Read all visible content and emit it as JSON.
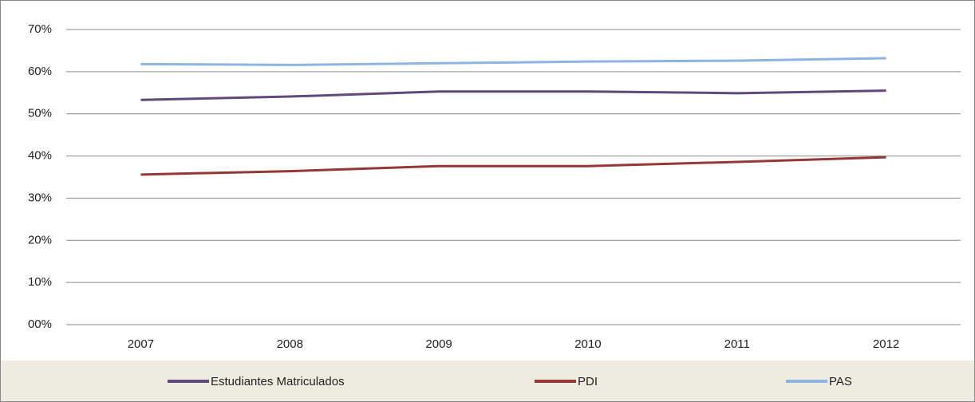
{
  "chart_data": {
    "type": "line",
    "categories": [
      "2007",
      "2008",
      "2009",
      "2010",
      "2011",
      "2012"
    ],
    "series": [
      {
        "name": "Estudiantes Matriculados",
        "color": "#604a7b",
        "values": [
          53.3,
          54.1,
          55.3,
          55.3,
          54.9,
          55.5
        ]
      },
      {
        "name": "PDI",
        "color": "#953735",
        "values": [
          35.6,
          36.4,
          37.6,
          37.6,
          38.6,
          39.7
        ]
      },
      {
        "name": "PAS",
        "color": "#8eb4e3",
        "values": [
          61.8,
          61.6,
          62.0,
          62.4,
          62.6,
          63.2
        ]
      }
    ],
    "ylim": [
      0,
      70
    ],
    "yticks": [
      {
        "value": 0,
        "label": "00%"
      },
      {
        "value": 10,
        "label": "10%"
      },
      {
        "value": 20,
        "label": "20%"
      },
      {
        "value": 30,
        "label": "30%"
      },
      {
        "value": 40,
        "label": "40%"
      },
      {
        "value": 50,
        "label": "50%"
      },
      {
        "value": 60,
        "label": "60%"
      },
      {
        "value": 70,
        "label": "70%"
      }
    ],
    "grid": true,
    "legend": "bottom"
  }
}
